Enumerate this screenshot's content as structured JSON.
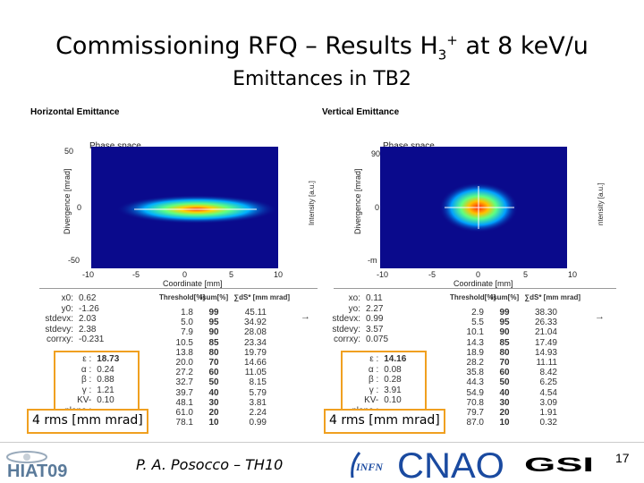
{
  "slide": {
    "title_main": "Commissioning RFQ – Results H",
    "title_sub": "3",
    "title_sup": "+",
    "title_tail": " at 8 keV/u",
    "subtitle": "Emittances in TB2"
  },
  "left_panel": {
    "label": "Horizontal Emittance",
    "phase_title": "Phase space",
    "y_ticks": [
      "50",
      "0",
      "-50"
    ],
    "x_ticks": [
      "-10",
      "-5",
      "0",
      "5",
      "10"
    ],
    "xlabel": "Coordinate [mm]",
    "ylabel": "Divergence [mrad]",
    "rlabel": "Intensity [a.u.]",
    "stats": [
      {
        "k": "x0:",
        "v": "0.62"
      },
      {
        "k": "y0:",
        "v": "-1.26"
      },
      {
        "k": "stdevx:",
        "v": "2.03"
      },
      {
        "k": "stdevy:",
        "v": "2.38"
      },
      {
        "k": "corrxy:",
        "v": "-0.231"
      }
    ],
    "twiss": [
      {
        "k": "ε :",
        "v": "18.73"
      },
      {
        "k": "α :",
        "v": "0.24"
      },
      {
        "k": "β :",
        "v": "0.88"
      },
      {
        "k": "γ :",
        "v": "1.21"
      },
      {
        "k": "KV-plane :",
        "v": "0.10"
      }
    ],
    "table_headers": [
      "Threshold[%]",
      "Isum[%]",
      "∑dS* [mm mrad]"
    ],
    "table_rows": [
      [
        "1.8",
        "99",
        "45.11"
      ],
      [
        "5.0",
        "95",
        "34.92"
      ],
      [
        "7.9",
        "90",
        "28.08"
      ],
      [
        "10.5",
        "85",
        "23.34"
      ],
      [
        "13.8",
        "80",
        "19.79"
      ],
      [
        "20.0",
        "70",
        "14.66"
      ],
      [
        "27.2",
        "60",
        "11.05"
      ],
      [
        "32.7",
        "50",
        "8.15"
      ],
      [
        "39.7",
        "40",
        "5.79"
      ],
      [
        "48.1",
        "30",
        "3.81"
      ],
      [
        "61.0",
        "20",
        "2.24"
      ],
      [
        "78.1",
        "10",
        "0.99"
      ]
    ],
    "callout": "4 rms [mm mrad]"
  },
  "right_panel": {
    "label": "Vertical Emittance",
    "phase_title": "Phase space",
    "y_ticks": [
      "90",
      "0",
      "-m"
    ],
    "x_ticks": [
      "-10",
      "-5",
      "0",
      "5",
      "10"
    ],
    "xlabel": "Coordinate [mm]",
    "ylabel": "Divergence [mrad]",
    "rlabel": "ntensity [a.u.]",
    "stats": [
      {
        "k": "xo:",
        "v": "0.11"
      },
      {
        "k": "yo:",
        "v": "2.27"
      },
      {
        "k": "stdevx:",
        "v": "0.99"
      },
      {
        "k": "stdevy:",
        "v": "3.57"
      },
      {
        "k": "corrxy:",
        "v": "0.075"
      }
    ],
    "twiss": [
      {
        "k": "ε :",
        "v": "14.16"
      },
      {
        "k": "α :",
        "v": "0.08"
      },
      {
        "k": "β :",
        "v": "0.28"
      },
      {
        "k": "γ :",
        "v": "3.91"
      },
      {
        "k": "KV-plane :",
        "v": "0.10"
      }
    ],
    "table_headers": [
      "Threshold[%]",
      "Isum[%]",
      "∑dS* [mm mrad]"
    ],
    "table_rows": [
      [
        "2.9",
        "99",
        "38.30"
      ],
      [
        "5.5",
        "95",
        "26.33"
      ],
      [
        "10.1",
        "90",
        "21.04"
      ],
      [
        "14.3",
        "85",
        "17.49"
      ],
      [
        "18.9",
        "80",
        "14.93"
      ],
      [
        "28.2",
        "70",
        "11.11"
      ],
      [
        "35.8",
        "60",
        "8.42"
      ],
      [
        "44.3",
        "50",
        "6.25"
      ],
      [
        "54.9",
        "40",
        "4.54"
      ],
      [
        "70.8",
        "30",
        "3.09"
      ],
      [
        "79.7",
        "20",
        "1.91"
      ],
      [
        "87.0",
        "10",
        "0.32"
      ]
    ],
    "callout": "4 rms [mm mrad]"
  },
  "footer": {
    "logo_hiat": "HIAT09",
    "author": "P. A. Posocco – TH10",
    "logo_infn": "INFN",
    "logo_cnao": "CNAO",
    "logo_gsi": "GSI",
    "page_number": "17"
  },
  "colors": {
    "plot_bg": "#0a0a8c",
    "callout_border": "#f0a020",
    "cnao_blue": "#1a4aa0"
  }
}
